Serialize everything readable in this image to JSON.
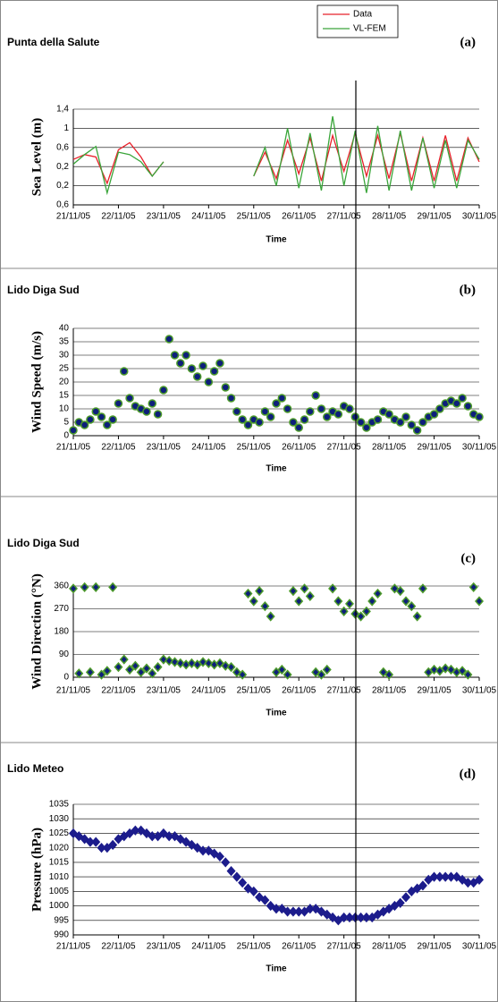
{
  "chart_data": [
    {
      "type": "line",
      "title": "Punta della Salute",
      "panel_label": "(a)",
      "ylabel": "Sea Level (m)",
      "xlabel": "Time",
      "legend": "top-right",
      "grid": true,
      "xlim": [
        21,
        30
      ],
      "xticks": [
        {
          "value": 21,
          "label": "21/11/05"
        },
        {
          "value": 22,
          "label": "22/11/05"
        },
        {
          "value": 23,
          "label": "23/11/05"
        },
        {
          "value": 24,
          "label": "24/11/05"
        },
        {
          "value": 25,
          "label": "25/11/05"
        },
        {
          "value": 26,
          "label": "26/11/05"
        },
        {
          "value": 27,
          "label": "27/11/05"
        },
        {
          "value": 28,
          "label": "28/11/05"
        },
        {
          "value": 29,
          "label": "29/11/05"
        },
        {
          "value": 30,
          "label": "30/11/05"
        }
      ],
      "ylim": [
        -0.6,
        1.4
      ],
      "yticks": [
        {
          "value": 1.4,
          "label": "1,4"
        },
        1,
        {
          "value": 0.6,
          "label": "0,6"
        },
        {
          "value": 0.2,
          "label": "0,2"
        },
        {
          "value": -0.2,
          "label": "0,2"
        },
        {
          "value": -0.6,
          "label": "0,6"
        }
      ],
      "x": [
        21,
        21.25,
        21.5,
        21.75,
        22,
        22.25,
        22.5,
        22.75,
        23,
        23.25,
        23.5,
        23.75,
        24,
        24.25,
        24.5,
        24.75,
        25,
        25.25,
        25.5,
        25.75,
        26,
        26.25,
        26.5,
        26.75,
        27,
        27.25,
        27.5,
        27.75,
        28,
        28.25,
        28.5,
        28.75,
        29,
        29.25,
        29.5,
        29.75,
        30
      ],
      "series": [
        {
          "name": "Data",
          "color": "#e8202a",
          "values": [
            0.35,
            0.45,
            0.4,
            -0.15,
            0.55,
            0.7,
            0.4,
            0.0,
            0.3,
            null,
            null,
            null,
            null,
            null,
            null,
            null,
            0.0,
            0.5,
            -0.05,
            0.75,
            0.05,
            0.8,
            -0.1,
            0.85,
            0.1,
            0.9,
            0.0,
            0.85,
            -0.05,
            0.9,
            -0.1,
            0.8,
            -0.1,
            0.85,
            -0.1,
            0.8,
            0.3
          ]
        },
        {
          "name": "VL-FEM",
          "color": "#3aa53a",
          "values": [
            0.25,
            0.45,
            0.62,
            -0.35,
            0.5,
            0.45,
            0.3,
            0.0,
            0.3,
            null,
            null,
            null,
            null,
            null,
            null,
            null,
            0.0,
            0.6,
            -0.2,
            1.0,
            -0.25,
            0.9,
            -0.3,
            1.25,
            -0.2,
            0.95,
            -0.35,
            1.05,
            -0.3,
            0.95,
            -0.3,
            0.8,
            -0.25,
            0.75,
            -0.25,
            0.75,
            0.35
          ]
        }
      ]
    },
    {
      "type": "scatter",
      "title": "Lido Diga Sud",
      "panel_label": "(b)",
      "ylabel": "Wind Speed (m/s)",
      "xlabel": "Time",
      "grid": true,
      "marker": "circle",
      "xlim": [
        21,
        30
      ],
      "xticks": [
        {
          "value": 21,
          "label": "21/11/05"
        },
        {
          "value": 22,
          "label": "22/11/05"
        },
        {
          "value": 23,
          "label": "23/11/05"
        },
        {
          "value": 24,
          "label": "24/11/05"
        },
        {
          "value": 25,
          "label": "25/11/05"
        },
        {
          "value": 26,
          "label": "26/11/05"
        },
        {
          "value": 27,
          "label": "27/11/05"
        },
        {
          "value": 28,
          "label": "28/11/05"
        },
        {
          "value": 29,
          "label": "29/11/05"
        },
        {
          "value": 30,
          "label": "30/11/05"
        }
      ],
      "ylim": [
        0,
        40
      ],
      "yticks": [
        0,
        5,
        10,
        15,
        20,
        25,
        30,
        35,
        40
      ],
      "x": [
        21,
        21.125,
        21.25,
        21.375,
        21.5,
        21.625,
        21.75,
        21.875,
        22,
        22.125,
        22.25,
        22.375,
        22.5,
        22.625,
        22.75,
        22.875,
        23,
        23.125,
        23.25,
        23.375,
        23.5,
        23.625,
        23.75,
        23.875,
        24,
        24.125,
        24.25,
        24.375,
        24.5,
        24.625,
        24.75,
        24.875,
        25,
        25.125,
        25.25,
        25.375,
        25.5,
        25.625,
        25.75,
        25.875,
        26,
        26.125,
        26.25,
        26.375,
        26.5,
        26.625,
        26.75,
        26.875,
        27,
        27.125,
        27.25,
        27.375,
        27.5,
        27.625,
        27.75,
        27.875,
        28,
        28.125,
        28.25,
        28.375,
        28.5,
        28.625,
        28.75,
        28.875,
        29,
        29.125,
        29.25,
        29.375,
        29.5,
        29.625,
        29.75,
        29.875,
        30
      ],
      "series": [
        {
          "color": "#0d1f7a",
          "edge": "#4c9a2a",
          "values": [
            2,
            5,
            4,
            6,
            9,
            7,
            4,
            6,
            12,
            24,
            14,
            11,
            10,
            9,
            12,
            8,
            17,
            36,
            30,
            27,
            30,
            25,
            22,
            26,
            20,
            24,
            27,
            18,
            14,
            9,
            6,
            4,
            6,
            5,
            9,
            7,
            12,
            14,
            10,
            5,
            3,
            6,
            9,
            15,
            10,
            7,
            9,
            8,
            11,
            10,
            7,
            5,
            3,
            5,
            6,
            9,
            8,
            6,
            5,
            7,
            4,
            2,
            5,
            7,
            8,
            10,
            12,
            13,
            12,
            14,
            11,
            8,
            7
          ]
        }
      ]
    },
    {
      "type": "scatter",
      "title": "Lido Diga Sud",
      "panel_label": "(c)",
      "ylabel": "Wind Direction (°N)",
      "xlabel": "Time",
      "grid": true,
      "marker": "diamond",
      "xlim": [
        21,
        30
      ],
      "xticks": [
        {
          "value": 21,
          "label": "21/11/05"
        },
        {
          "value": 22,
          "label": "22/11/05"
        },
        {
          "value": 23,
          "label": "23/11/05"
        },
        {
          "value": 24,
          "label": "24/11/05"
        },
        {
          "value": 25,
          "label": "25/11/05"
        },
        {
          "value": 26,
          "label": "26/11/05"
        },
        {
          "value": 27,
          "label": "27/11/05"
        },
        {
          "value": 28,
          "label": "28/11/05"
        },
        {
          "value": 29,
          "label": "29/11/05"
        },
        {
          "value": 30,
          "label": "30/11/05"
        }
      ],
      "ylim": [
        0,
        360
      ],
      "yticks": [
        0,
        90,
        180,
        270,
        360
      ],
      "x": [
        21,
        21.125,
        21.25,
        21.375,
        21.5,
        21.625,
        21.75,
        21.875,
        22,
        22.125,
        22.25,
        22.375,
        22.5,
        22.625,
        22.75,
        22.875,
        23,
        23.125,
        23.25,
        23.375,
        23.5,
        23.625,
        23.75,
        23.875,
        24,
        24.125,
        24.25,
        24.375,
        24.5,
        24.625,
        24.75,
        24.875,
        25,
        25.125,
        25.25,
        25.375,
        25.5,
        25.625,
        25.75,
        25.875,
        26,
        26.125,
        26.25,
        26.375,
        26.5,
        26.625,
        26.75,
        26.875,
        27,
        27.125,
        27.25,
        27.375,
        27.5,
        27.625,
        27.75,
        27.875,
        28,
        28.125,
        28.25,
        28.375,
        28.5,
        28.625,
        28.75,
        28.875,
        29,
        29.125,
        29.25,
        29.375,
        29.5,
        29.625,
        29.75,
        29.875,
        30
      ],
      "series": [
        {
          "color": "#0d1f7a",
          "edge": "#4c9a2a",
          "values": [
            350,
            15,
            355,
            20,
            355,
            10,
            25,
            355,
            40,
            70,
            30,
            45,
            20,
            35,
            15,
            40,
            70,
            65,
            60,
            55,
            50,
            55,
            50,
            60,
            55,
            50,
            55,
            45,
            40,
            20,
            10,
            330,
            300,
            340,
            280,
            240,
            20,
            30,
            10,
            340,
            300,
            350,
            320,
            20,
            10,
            30,
            350,
            300,
            260,
            290,
            250,
            240,
            260,
            300,
            330,
            20,
            10,
            350,
            340,
            300,
            280,
            240,
            350,
            20,
            30,
            25,
            35,
            30,
            20,
            25,
            10,
            355,
            300
          ]
        }
      ]
    },
    {
      "type": "scatter",
      "title": "Lido Meteo",
      "panel_label": "(d)",
      "ylabel": "Pressure (hPa)",
      "xlabel": "Time",
      "grid": true,
      "marker": "diamond",
      "xlim": [
        21,
        30
      ],
      "xticks": [
        {
          "value": 21,
          "label": "21/11/05"
        },
        {
          "value": 22,
          "label": "22/11/05"
        },
        {
          "value": 23,
          "label": "23/11/05"
        },
        {
          "value": 24,
          "label": "24/11/05"
        },
        {
          "value": 25,
          "label": "25/11/05"
        },
        {
          "value": 26,
          "label": "26/11/05"
        },
        {
          "value": 27,
          "label": "27/11/05"
        },
        {
          "value": 28,
          "label": "28/11/05"
        },
        {
          "value": 29,
          "label": "29/11/05"
        },
        {
          "value": 30,
          "label": "30/11/05"
        }
      ],
      "ylim": [
        990,
        1035
      ],
      "yticks": [
        990,
        995,
        1000,
        1005,
        1010,
        1015,
        1020,
        1025,
        1030,
        1035
      ],
      "x": [
        21,
        21.125,
        21.25,
        21.375,
        21.5,
        21.625,
        21.75,
        21.875,
        22,
        22.125,
        22.25,
        22.375,
        22.5,
        22.625,
        22.75,
        22.875,
        23,
        23.125,
        23.25,
        23.375,
        23.5,
        23.625,
        23.75,
        23.875,
        24,
        24.125,
        24.25,
        24.375,
        24.5,
        24.625,
        24.75,
        24.875,
        25,
        25.125,
        25.25,
        25.375,
        25.5,
        25.625,
        25.75,
        25.875,
        26,
        26.125,
        26.25,
        26.375,
        26.5,
        26.625,
        26.75,
        26.875,
        27,
        27.125,
        27.25,
        27.375,
        27.5,
        27.625,
        27.75,
        27.875,
        28,
        28.125,
        28.25,
        28.375,
        28.5,
        28.625,
        28.75,
        28.875,
        29,
        29.125,
        29.25,
        29.375,
        29.5,
        29.625,
        29.75,
        29.875,
        30
      ],
      "series": [
        {
          "color": "#1c1c8c",
          "edge": "#1c1c8c",
          "values": [
            1025,
            1024,
            1023,
            1022,
            1022,
            1020,
            1020,
            1021,
            1023,
            1024,
            1025,
            1026,
            1026,
            1025,
            1024,
            1024,
            1025,
            1024,
            1024,
            1023,
            1022,
            1021,
            1020,
            1019,
            1019,
            1018,
            1017,
            1015,
            1012,
            1010,
            1008,
            1006,
            1005,
            1003,
            1002,
            1000,
            999,
            999,
            998,
            998,
            998,
            998,
            999,
            999,
            998,
            997,
            996,
            995,
            996,
            996,
            996,
            996,
            996,
            996,
            997,
            998,
            999,
            1000,
            1001,
            1003,
            1005,
            1006,
            1007,
            1009,
            1010,
            1010,
            1010,
            1010,
            1010,
            1009,
            1008,
            1008,
            1009
          ]
        }
      ]
    }
  ]
}
